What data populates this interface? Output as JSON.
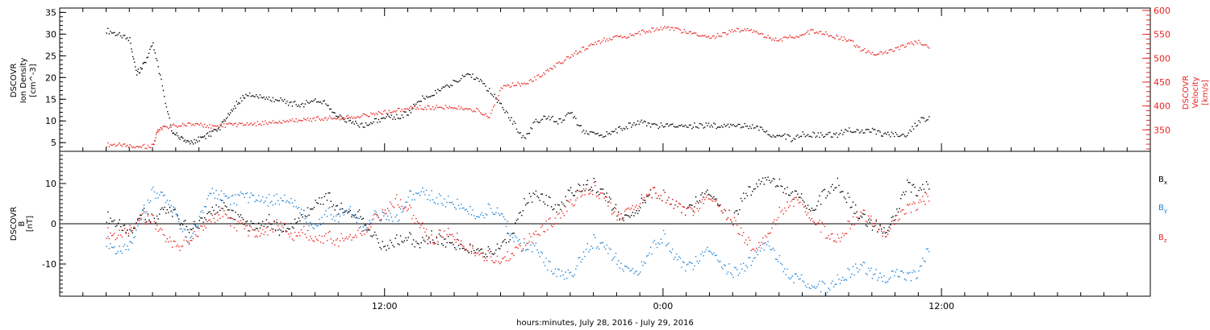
{
  "chart_data": [
    {
      "type": "scatter",
      "panel": "density-velocity",
      "left_axis": {
        "label_lines": [
          "DSCOVR",
          "Ion Density",
          "[cm^-3]"
        ],
        "ylim": [
          3,
          36
        ],
        "ticks": [
          5,
          10,
          15,
          20,
          25,
          30,
          35
        ],
        "color": "#000000"
      },
      "right_axis": {
        "label_lines": [
          "DSCOVR",
          "Velocity",
          "[km/s]"
        ],
        "ylim": [
          305,
          605
        ],
        "ticks": [
          350,
          400,
          450,
          500,
          550,
          600
        ],
        "color": "#e8231f"
      },
      "series": [
        {
          "key": "density",
          "color": "#000000",
          "axis": "left",
          "x": [
            0,
            0.5,
            1.0,
            1.3,
            1.6,
            2.0,
            2.4,
            2.8,
            3.2,
            3.6,
            4.0,
            4.4,
            4.8,
            5.2,
            5.6,
            6.0,
            6.5,
            7.0,
            7.5,
            8.0,
            8.5,
            9.0,
            9.5,
            10.0,
            10.5,
            11.0,
            11.5,
            12.0,
            12.5,
            13.0,
            13.5,
            14.0,
            14.5,
            15.0,
            15.5,
            16.0,
            16.5,
            17.0,
            17.5,
            18.0,
            18.5,
            19.0,
            19.5,
            20.0,
            20.5,
            21.0,
            21.5,
            22.0,
            22.5,
            23.0,
            23.5,
            24.0,
            24.5,
            25.0,
            25.5,
            26.0,
            26.5,
            27.0,
            27.5,
            28.0,
            28.5,
            29.0,
            29.5,
            30.0,
            30.5,
            31.0,
            31.5,
            32.0,
            32.5,
            33.0,
            33.5,
            34.0,
            34.5,
            35.0,
            35.5
          ],
          "y": [
            31,
            30,
            29,
            21,
            23,
            28,
            18,
            8,
            6,
            5,
            6,
            7,
            8,
            11,
            14,
            16,
            16,
            15,
            15,
            14,
            14,
            15,
            14,
            11,
            10,
            9,
            10,
            11,
            11,
            12,
            15,
            16,
            18,
            19,
            21,
            20,
            17,
            14,
            10,
            6,
            10,
            11,
            10,
            12,
            8,
            7,
            7,
            8,
            9,
            10,
            9,
            9,
            9,
            9,
            9,
            9,
            9,
            9,
            9,
            9,
            7,
            7,
            6,
            7,
            7,
            7,
            7,
            8,
            8,
            8,
            7,
            7,
            7,
            10,
            11
          ]
        },
        {
          "key": "velocity",
          "color": "#e8231f",
          "axis": "right",
          "x": [
            0,
            0.5,
            1.0,
            1.5,
            2.0,
            2.2,
            2.5,
            3.0,
            3.5,
            4.0,
            4.5,
            5.0,
            5.5,
            6.0,
            6.5,
            7.0,
            7.5,
            8.0,
            8.5,
            9.0,
            9.5,
            10.0,
            10.5,
            11.0,
            11.5,
            12.0,
            12.5,
            13.0,
            13.5,
            14.0,
            14.5,
            15.0,
            15.5,
            16.0,
            16.5,
            17.0,
            17.5,
            18.0,
            18.5,
            19.0,
            19.5,
            20.0,
            20.5,
            21.0,
            21.5,
            22.0,
            22.5,
            23.0,
            23.5,
            24.0,
            24.5,
            25.0,
            25.5,
            26.0,
            26.5,
            27.0,
            27.5,
            28.0,
            28.5,
            29.0,
            29.5,
            30.0,
            30.5,
            31.0,
            31.5,
            32.0,
            32.5,
            33.0,
            33.5,
            34.0,
            34.5,
            35.0,
            35.5
          ],
          "y": [
            320,
            320,
            318,
            316,
            317,
            350,
            356,
            360,
            362,
            362,
            358,
            360,
            362,
            362,
            364,
            366,
            368,
            370,
            372,
            374,
            376,
            375,
            378,
            380,
            384,
            388,
            392,
            396,
            398,
            398,
            398,
            398,
            396,
            392,
            378,
            440,
            445,
            448,
            460,
            475,
            490,
            505,
            520,
            530,
            540,
            545,
            548,
            555,
            560,
            565,
            562,
            555,
            550,
            545,
            550,
            558,
            562,
            555,
            545,
            540,
            545,
            552,
            558,
            552,
            545,
            540,
            520,
            510,
            515,
            520,
            530,
            535,
            525
          ]
        }
      ]
    },
    {
      "type": "scatter",
      "panel": "magnetic-field",
      "left_axis": {
        "label_lines": [
          "DSCOVR",
          "B",
          "[nT]"
        ],
        "ylim": [
          -18,
          18
        ],
        "ticks": [
          -10,
          0,
          10
        ],
        "color": "#000000"
      },
      "zero_line": true,
      "series": [
        {
          "key": "bx",
          "name": "B",
          "subscript": "x",
          "color": "#000000",
          "x": [
            0,
            0.5,
            1.0,
            1.5,
            2.0,
            2.5,
            3.0,
            3.5,
            4.0,
            4.5,
            5.0,
            5.5,
            6.0,
            6.5,
            7.0,
            7.5,
            8.0,
            8.5,
            9.0,
            9.5,
            10.0,
            10.5,
            11.0,
            11.5,
            12.0,
            12.5,
            13.0,
            13.5,
            14.0,
            14.5,
            15.0,
            15.5,
            16.0,
            16.5,
            17.0,
            17.5,
            18.0,
            18.5,
            19.0,
            19.5,
            20.0,
            20.5,
            21.0,
            21.5,
            22.0,
            22.5,
            23.0,
            23.5,
            24.0,
            24.5,
            25.0,
            25.5,
            26.0,
            26.5,
            27.0,
            27.5,
            28.0,
            28.5,
            29.0,
            29.5,
            30.0,
            30.5,
            31.0,
            31.5,
            32.0,
            32.5,
            33.0,
            33.5,
            34.0,
            34.5,
            35.0,
            35.5
          ],
          "y": [
            2,
            0,
            -2,
            3,
            1,
            4,
            2,
            -1,
            0,
            3,
            5,
            2,
            0,
            -1,
            1,
            -2,
            0,
            2,
            5,
            7,
            4,
            3,
            2,
            -3,
            -6,
            -4,
            -3,
            -5,
            -3,
            -4,
            -5,
            -6,
            -6,
            -7,
            -5,
            -2,
            5,
            8,
            6,
            4,
            8,
            9,
            10,
            7,
            3,
            1,
            5,
            8,
            7,
            5,
            3,
            6,
            8,
            4,
            1,
            7,
            10,
            11,
            10,
            8,
            6,
            4,
            8,
            10,
            6,
            2,
            0,
            -2,
            3,
            10,
            8,
            10
          ]
        },
        {
          "key": "by",
          "name": "B",
          "subscript": "y",
          "color": "#1f82d6",
          "x": [
            0,
            0.5,
            1.0,
            1.5,
            2.0,
            2.5,
            3.0,
            3.5,
            4.0,
            4.5,
            5.0,
            5.5,
            6.0,
            6.5,
            7.0,
            7.5,
            8.0,
            8.5,
            9.0,
            9.5,
            10.0,
            10.5,
            11.0,
            11.5,
            12.0,
            12.5,
            13.0,
            13.5,
            14.0,
            14.5,
            15.0,
            15.5,
            16.0,
            16.5,
            17.0,
            17.5,
            18.0,
            18.5,
            19.0,
            19.5,
            20.0,
            20.5,
            21.0,
            21.5,
            22.0,
            22.5,
            23.0,
            23.5,
            24.0,
            24.5,
            25.0,
            25.5,
            26.0,
            26.5,
            27.0,
            27.5,
            28.0,
            28.5,
            29.0,
            29.5,
            30.0,
            30.5,
            31.0,
            31.5,
            32.0,
            32.5,
            33.0,
            33.5,
            34.0,
            34.5,
            35.0,
            35.5
          ],
          "y": [
            -4,
            -7,
            -5,
            2,
            8,
            7,
            2,
            -4,
            1,
            8,
            7,
            6,
            7,
            6,
            6,
            6,
            6,
            2,
            -1,
            3,
            2,
            4,
            -1,
            2,
            2,
            1,
            7,
            8,
            7,
            6,
            5,
            4,
            2,
            4,
            3,
            -3,
            -6,
            -5,
            -10,
            -12,
            -13,
            -8,
            -4,
            -6,
            -9,
            -12,
            -11,
            -6,
            -3,
            -8,
            -11,
            -9,
            -6,
            -10,
            -12,
            -11,
            -7,
            -5,
            -9,
            -13,
            -14,
            -15,
            -16,
            -14,
            -12,
            -10,
            -12,
            -14,
            -11,
            -13,
            -12,
            -5
          ]
        },
        {
          "key": "bz",
          "name": "B",
          "subscript": "z",
          "color": "#e8231f",
          "x": [
            0,
            0.5,
            1.0,
            1.5,
            2.0,
            2.5,
            3.0,
            3.5,
            4.0,
            4.5,
            5.0,
            5.5,
            6.0,
            6.5,
            7.0,
            7.5,
            8.0,
            8.5,
            9.0,
            9.5,
            10.0,
            10.5,
            11.0,
            11.5,
            12.0,
            12.5,
            13.0,
            13.5,
            14.0,
            14.5,
            15.0,
            15.5,
            16.0,
            16.5,
            17.0,
            17.5,
            18.0,
            18.5,
            19.0,
            19.5,
            20.0,
            20.5,
            21.0,
            21.5,
            22.0,
            22.5,
            23.0,
            23.5,
            24.0,
            24.5,
            25.0,
            25.5,
            26.0,
            26.5,
            27.0,
            27.5,
            28.0,
            28.5,
            29.0,
            29.5,
            30.0,
            30.5,
            31.0,
            31.5,
            32.0,
            32.5,
            33.0,
            33.5,
            34.0,
            34.5,
            35.0,
            35.5
          ],
          "y": [
            -2,
            -3,
            -1,
            2,
            1,
            -3,
            -6,
            -4,
            -2,
            1,
            3,
            0,
            -1,
            -3,
            -1,
            0,
            -3,
            -2,
            -4,
            -3,
            -4,
            -3,
            -2,
            1,
            3,
            6,
            4,
            0,
            -4,
            -2,
            -3,
            -6,
            -7,
            -8,
            -9,
            -7,
            -5,
            -2,
            0,
            2,
            5,
            8,
            9,
            6,
            2,
            3,
            6,
            8,
            7,
            5,
            3,
            4,
            7,
            4,
            1,
            -4,
            -6,
            -3,
            3,
            6,
            5,
            1,
            -2,
            -4,
            0,
            3,
            1,
            -3,
            2,
            4,
            5,
            7
          ]
        }
      ]
    }
  ],
  "x_axis": {
    "xlim": [
      -2,
      45
    ],
    "tick_hours": [
      12,
      24,
      36
    ],
    "tick_labels": [
      "12:00",
      "0:00",
      "12:00"
    ],
    "label": "hours:minutes, July 28, 2016 - July 29, 2016"
  }
}
